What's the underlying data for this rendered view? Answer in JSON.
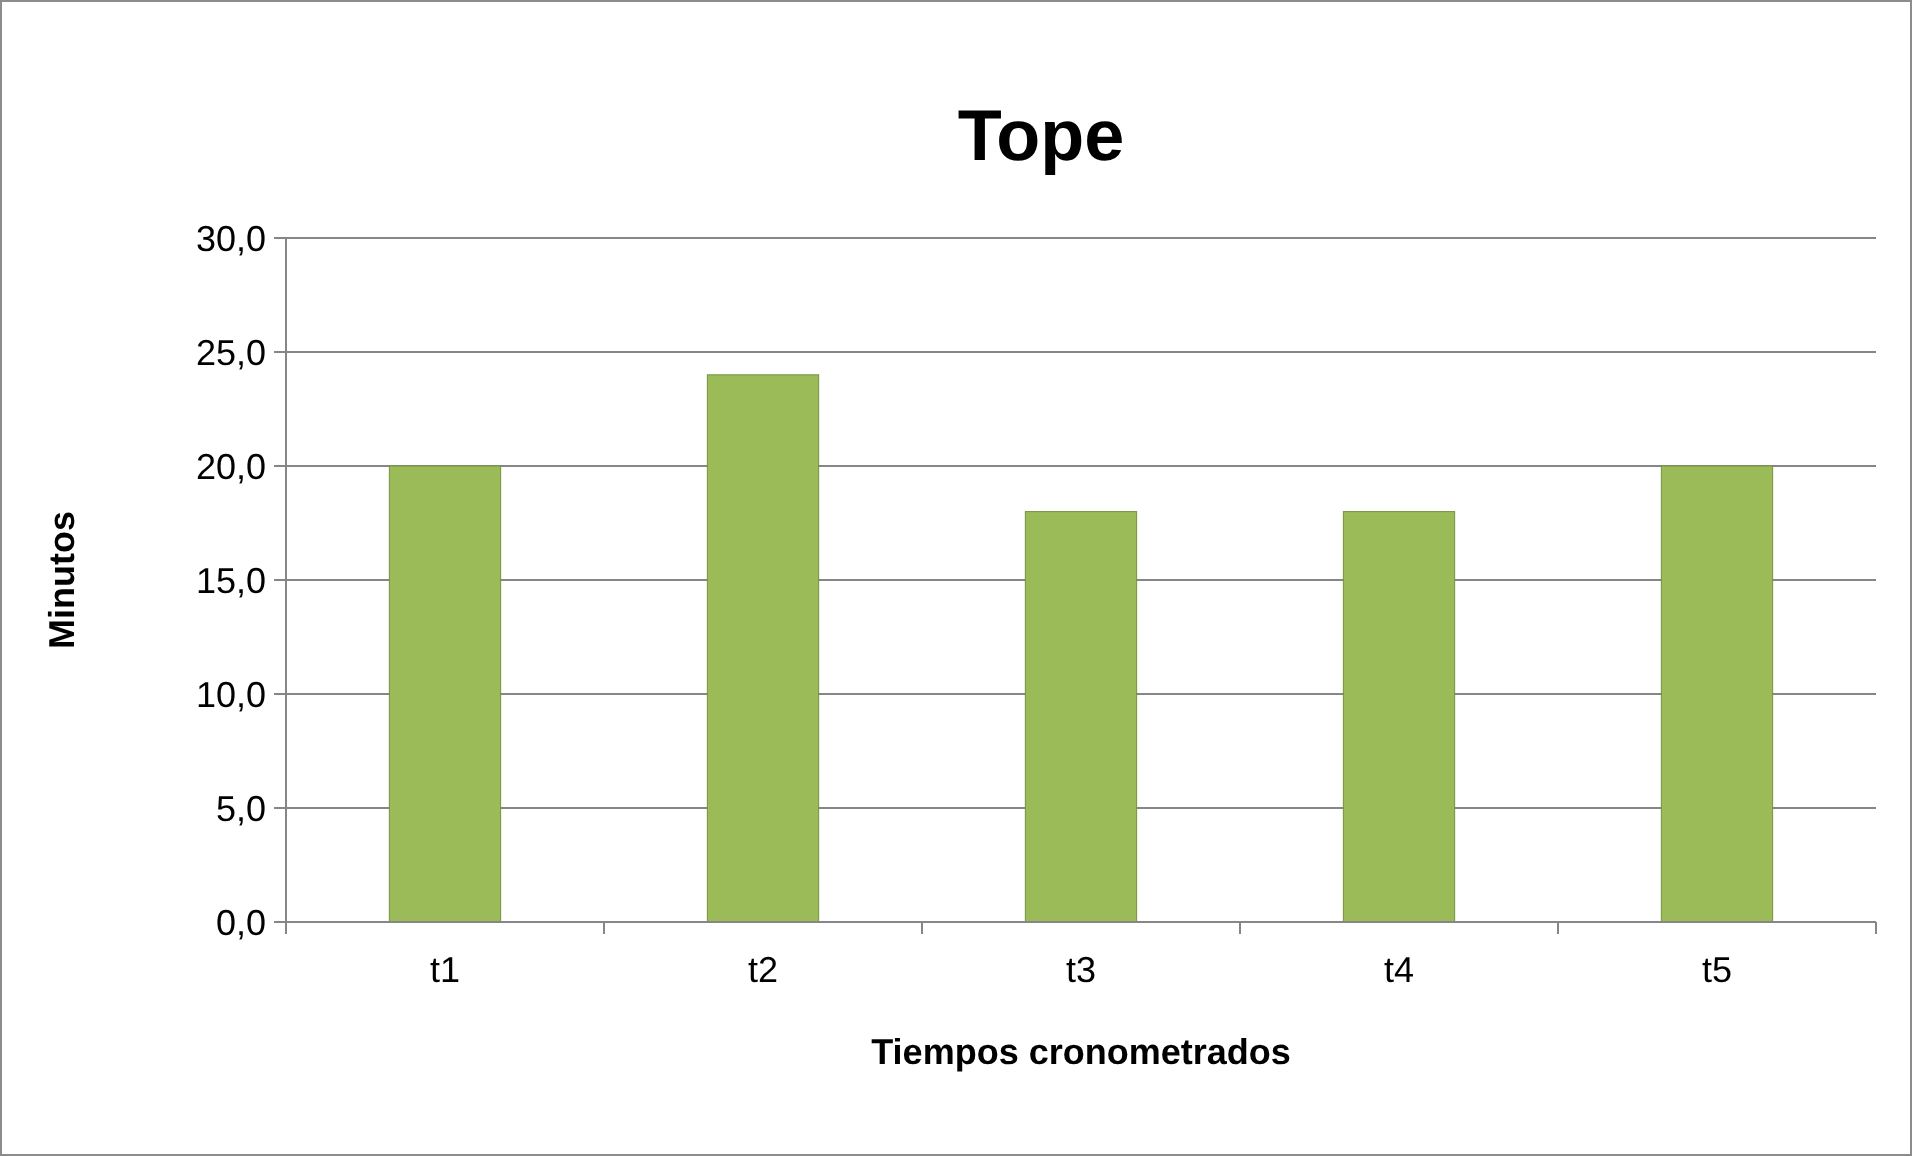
{
  "chart_data": {
    "type": "bar",
    "title": "Tope",
    "xlabel": "Tiempos cronometrados",
    "ylabel": "Minutos",
    "categories": [
      "t1",
      "t2",
      "t3",
      "t4",
      "t5"
    ],
    "values": [
      20,
      24,
      18,
      18,
      20
    ],
    "color": "#9bbb59",
    "ylim": [
      0,
      30
    ],
    "yticks": [
      {
        "value": 0,
        "label": "0,0"
      },
      {
        "value": 5,
        "label": "5,0"
      },
      {
        "value": 10,
        "label": "10,0"
      },
      {
        "value": 15,
        "label": "15,0"
      },
      {
        "value": 20,
        "label": "20,0"
      },
      {
        "value": 25,
        "label": "25,0"
      },
      {
        "value": 30,
        "label": "30,0"
      }
    ],
    "grid": "y"
  }
}
